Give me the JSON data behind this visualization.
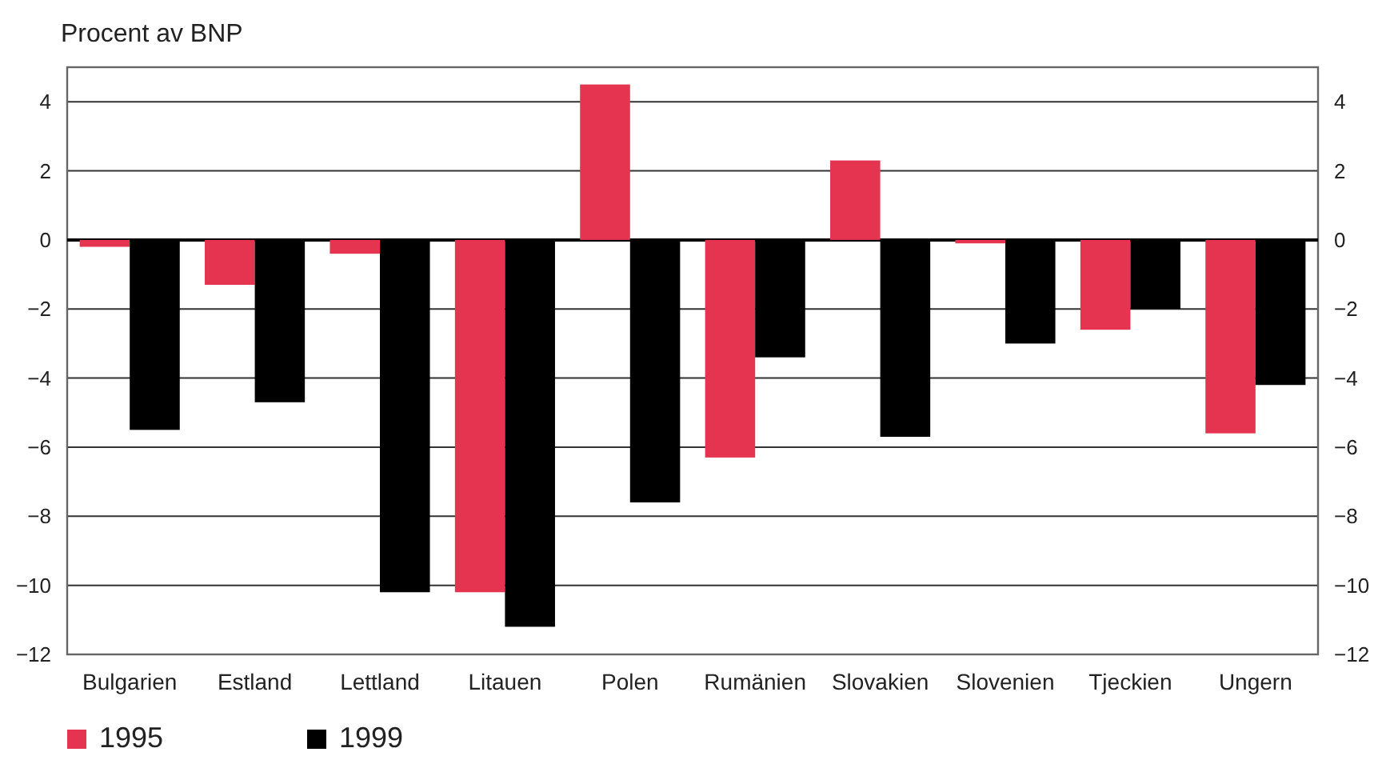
{
  "chart_data": {
    "type": "bar",
    "ylabel": "Procent av BNP",
    "categories": [
      "Bulgarien",
      "Estland",
      "Lettland",
      "Litauen",
      "Polen",
      "Rumänien",
      "Slovakien",
      "Slovenien",
      "Tjeckien",
      "Ungern"
    ],
    "series": [
      {
        "name": "1995",
        "color": "#e5344f",
        "values": [
          -0.2,
          -1.3,
          -0.4,
          -10.2,
          4.5,
          -6.3,
          2.3,
          -0.1,
          -2.6,
          -5.6
        ]
      },
      {
        "name": "1999",
        "color": "#000000",
        "values": [
          -5.5,
          -4.7,
          -10.2,
          -11.2,
          -7.6,
          -3.4,
          -5.7,
          -3.0,
          -2.0,
          -4.2
        ]
      }
    ],
    "ylim": [
      -12,
      5
    ],
    "yticks": [
      {
        "value": -12,
        "label": "−12"
      },
      {
        "value": -10,
        "label": "−10"
      },
      {
        "value": -8,
        "label": "−8"
      },
      {
        "value": -6,
        "label": "−6"
      },
      {
        "value": -4,
        "label": "−4"
      },
      {
        "value": -2,
        "label": "−2"
      },
      0,
      2,
      4
    ],
    "y2lim": [
      -12,
      5
    ],
    "y2ticks": [
      {
        "value": -12,
        "label": "−12"
      },
      {
        "value": -10,
        "label": "−10"
      },
      {
        "value": -8,
        "label": "−8"
      },
      {
        "value": -6,
        "label": "−6"
      },
      {
        "value": -4,
        "label": "−4"
      },
      {
        "value": -2,
        "label": "−2"
      },
      0,
      2,
      4
    ],
    "grid": "y",
    "legend": "bottom left"
  }
}
